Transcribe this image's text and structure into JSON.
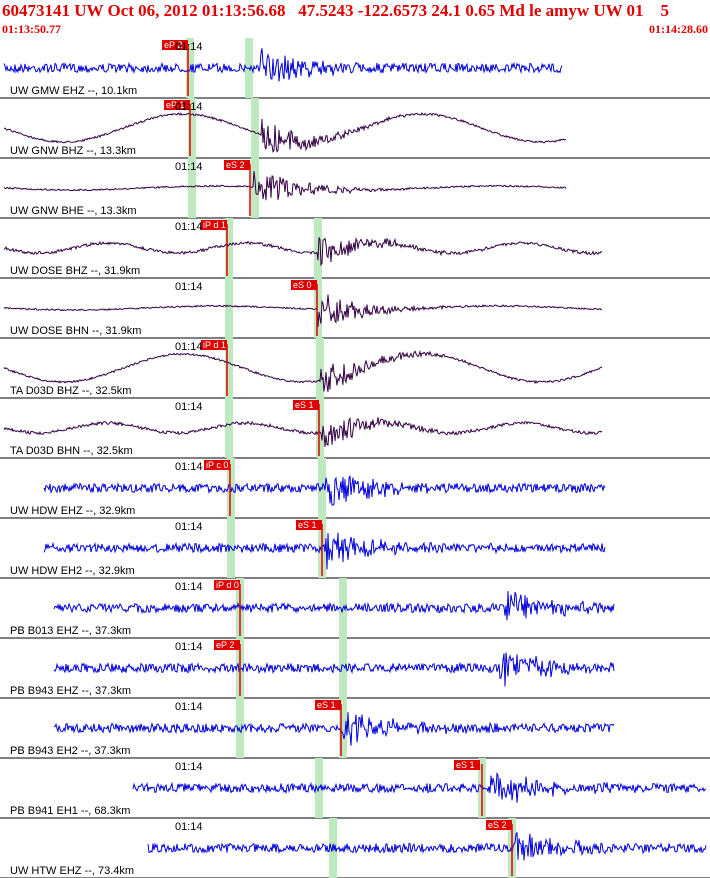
{
  "header": {
    "title": "60473141 UW Oct 06, 2012 01:13:56.68   47.5243 -122.6573 24.1 0.65 Md le amyw UW 01    5",
    "start_time": "01:13:50.77",
    "end_time": "01:14:28.60",
    "tick_label": "01:14",
    "colors": {
      "header_text": "#e00000",
      "pick_box": "#e00000",
      "marker": "#bde8c0"
    }
  },
  "traces": [
    {
      "label": "UW GMW EHZ --, 10.1km",
      "pick": "eP 2",
      "color": "#0000dd",
      "waveform": "noisy"
    },
    {
      "label": "UW GNW BHZ --, 13.3km",
      "pick": "eP 1",
      "color": "#330044",
      "waveform": "long-period"
    },
    {
      "label": "UW GNW BHE --, 13.3km",
      "pick": "eS 2",
      "color": "#330044",
      "waveform": "quiet-burst"
    },
    {
      "label": "UW DOSE BHZ --, 31.9km",
      "pick": "iP d 1",
      "color": "#330044",
      "waveform": "wavy"
    },
    {
      "label": "UW DOSE BHN --, 31.9km",
      "pick": "eS 0",
      "color": "#330044",
      "waveform": "quiet-burst"
    },
    {
      "label": "TA D03D BHZ --, 32.5km",
      "pick": "iP d 1",
      "color": "#330044",
      "waveform": "long-period"
    },
    {
      "label": "TA D03D BHN --, 32.5km",
      "pick": "eS 1",
      "color": "#330044",
      "waveform": "wavy"
    },
    {
      "label": "UW HDW EHZ --, 32.9km",
      "pick": "iP c 0",
      "color": "#0000dd",
      "waveform": "noisy"
    },
    {
      "label": "UW HDW EH2 --, 32.9km",
      "pick": "eS 1",
      "color": "#0000dd",
      "waveform": "noisy"
    },
    {
      "label": "PB B013 EHZ --, 37.3km",
      "pick": "iP d 0",
      "color": "#0000dd",
      "waveform": "noisy"
    },
    {
      "label": "PB B943 EHZ --, 37.3km",
      "pick": "eP 2",
      "color": "#0000dd",
      "waveform": "noisy"
    },
    {
      "label": "PB B943 EH2 --, 37.3km",
      "pick": "eS 1",
      "color": "#0000dd",
      "waveform": "noisy"
    },
    {
      "label": "PB B941 EH1 --, 68.3km",
      "pick": "eS 1",
      "color": "#0000dd",
      "waveform": "noisy"
    },
    {
      "label": "UW HTW EHZ --, 73.4km",
      "pick": "eS 2",
      "color": "#0000dd",
      "waveform": "noisy"
    }
  ]
}
